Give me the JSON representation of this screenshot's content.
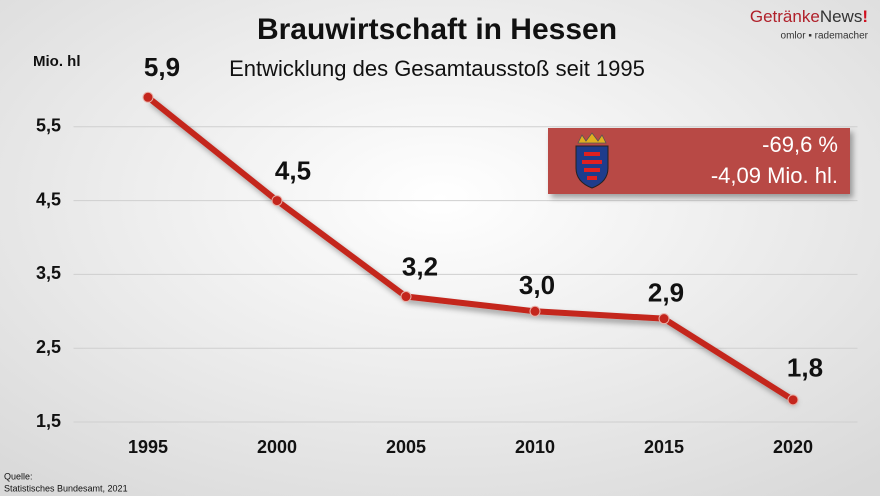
{
  "chart_data": {
    "type": "line",
    "title": "Brauwirtschaft in Hessen",
    "subtitle": "Entwicklung des Gesamtausstoß seit 1995",
    "y_label": "Mio. hl",
    "categories": [
      "1995",
      "2000",
      "2005",
      "2010",
      "2015",
      "2020"
    ],
    "values": [
      5.9,
      4.5,
      3.2,
      3.0,
      2.9,
      1.8
    ],
    "value_labels": [
      "5,9",
      "4,5",
      "3,2",
      "3,0",
      "2,9",
      "1,8"
    ],
    "color": "#c4261d",
    "ylim": [
      1.5,
      6.5
    ],
    "yticks": [
      {
        "value": 1.5,
        "label": "1,5"
      },
      {
        "value": 2.5,
        "label": "2,5"
      },
      {
        "value": 3.5,
        "label": "3,5"
      },
      {
        "value": 4.5,
        "label": "4,5"
      },
      {
        "value": 5.5,
        "label": "5,5"
      }
    ],
    "grid": true,
    "annotation": [
      "-69,6 %",
      "-4,09 Mio. hl."
    ],
    "logo": [
      "Getränke",
      "News",
      "!"
    ],
    "logo_sub": "omlor ▪ rademacher",
    "source": [
      "Quelle:",
      "Statistisches Bundesamt, 2021"
    ]
  }
}
